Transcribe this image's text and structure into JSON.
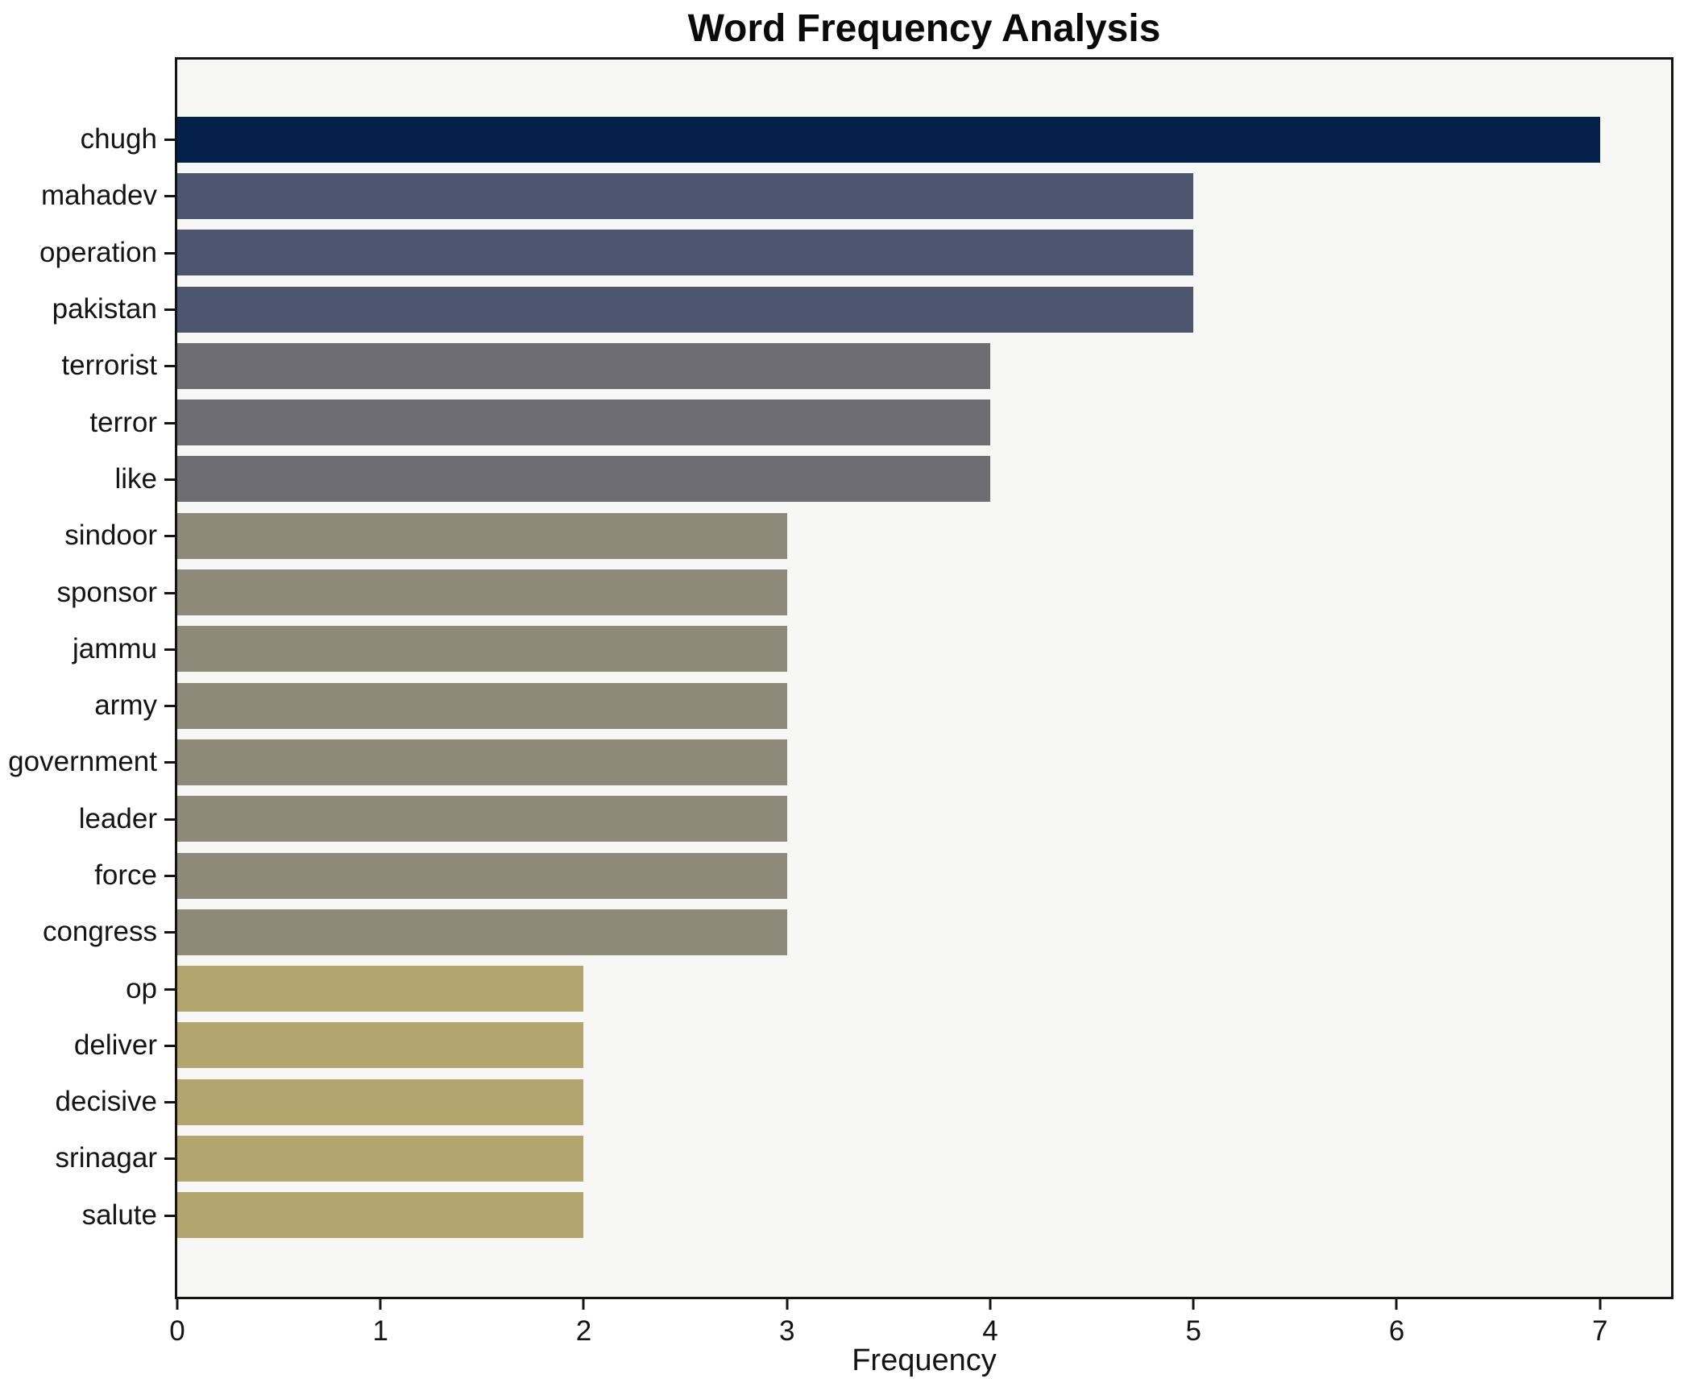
{
  "chart_data": {
    "type": "bar",
    "orientation": "horizontal",
    "title": "Word Frequency Analysis",
    "xlabel": "Frequency",
    "ylabel": "",
    "categories": [
      "chugh",
      "mahadev",
      "operation",
      "pakistan",
      "terrorist",
      "terror",
      "like",
      "sindoor",
      "sponsor",
      "jammu",
      "army",
      "government",
      "leader",
      "force",
      "congress",
      "op",
      "deliver",
      "decisive",
      "srinagar",
      "salute"
    ],
    "values": [
      7,
      5,
      5,
      5,
      4,
      4,
      4,
      3,
      3,
      3,
      3,
      3,
      3,
      3,
      3,
      2,
      2,
      2,
      2,
      2
    ],
    "bar_colors": [
      "#03214a",
      "#4e566f",
      "#4e566f",
      "#4e566f",
      "#6e6e72",
      "#6e6e72",
      "#6e6e72",
      "#8e8a79",
      "#8e8a79",
      "#8e8a79",
      "#8e8a79",
      "#8e8a79",
      "#8e8a79",
      "#8e8a79",
      "#8e8a79",
      "#b2a56d",
      "#b2a56d",
      "#b2a56d",
      "#b2a56d",
      "#b2a56d"
    ],
    "xticks": [
      0,
      1,
      2,
      3,
      4,
      5,
      6,
      7
    ],
    "xlim": [
      0,
      7.35
    ],
    "grid": false,
    "legend": false,
    "colors": {
      "figure_bg": "#ffffff",
      "plot_bg": "#f7f7f6",
      "spine": "#141414",
      "text": "#141414"
    }
  }
}
